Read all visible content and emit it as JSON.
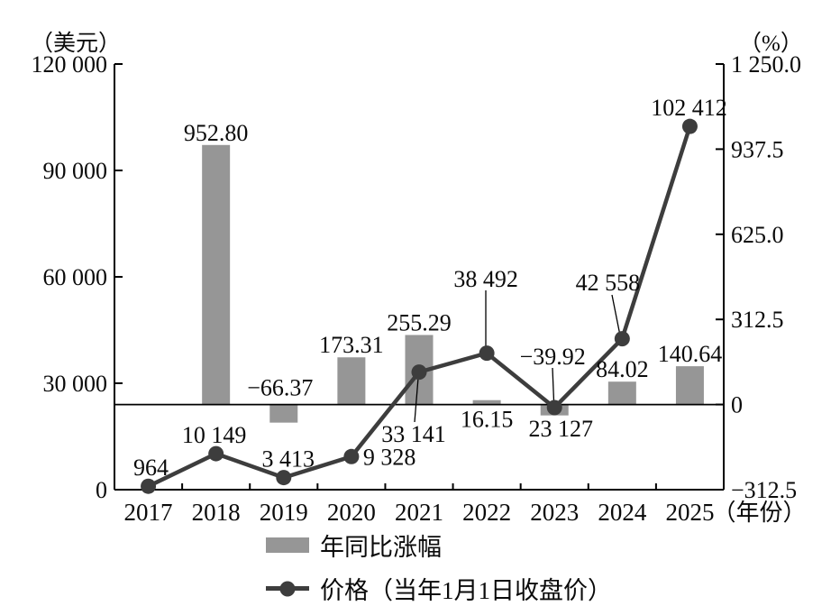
{
  "chart_data": {
    "type": "combo",
    "categories": [
      "2017",
      "2018",
      "2019",
      "2020",
      "2021",
      "2022",
      "2023",
      "2024",
      "2025"
    ],
    "x_label_suffix": "（年份）",
    "series": [
      {
        "name": "年同比涨幅",
        "type": "bar",
        "axis": "right",
        "color": "#969696",
        "values": [
          null,
          952.8,
          -66.37,
          173.31,
          255.29,
          16.15,
          -39.92,
          84.02,
          140.64
        ],
        "value_labels": [
          null,
          "952.80",
          "−66.37",
          "173.31",
          "255.29",
          "16.15",
          "−39.92",
          "84.02",
          "140.64"
        ]
      },
      {
        "name": "价格（当年1月1日收盘价）",
        "type": "line",
        "axis": "left",
        "color": "#3d3d3d",
        "values": [
          964,
          10149,
          3413,
          9328,
          33141,
          38492,
          23127,
          42558,
          102412
        ],
        "value_labels": [
          "964",
          "10 149",
          "3 413",
          "9 328",
          "33 141",
          "38 492",
          "23 127",
          "42 558",
          "102 412"
        ]
      }
    ],
    "left_axis": {
      "label": "（美元）",
      "range": [
        0,
        120000
      ],
      "tick_values": [
        0,
        30000,
        60000,
        90000,
        120000
      ],
      "tick_labels": [
        "0",
        "30 000",
        "60 000",
        "90 000",
        "120 000"
      ]
    },
    "right_axis": {
      "label": "（%）",
      "range": [
        -312.5,
        1250.0
      ],
      "tick_values": [
        -312.5,
        0,
        312.5,
        625.0,
        937.5,
        1250.0
      ],
      "tick_labels": [
        "−312.5",
        "0",
        "312.5",
        "625.0",
        "937.5",
        "1 250.0"
      ]
    },
    "grid": false,
    "legend_position": "bottom"
  }
}
